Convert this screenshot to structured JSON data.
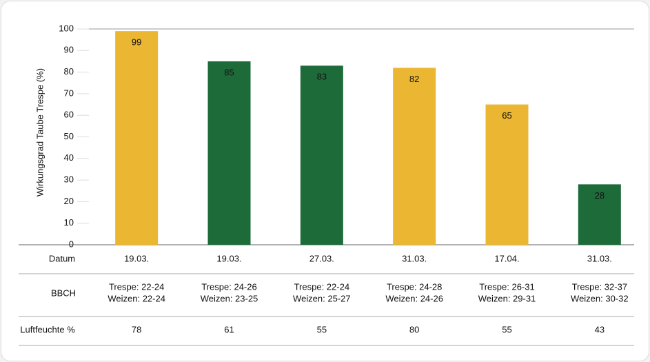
{
  "chart_data": {
    "type": "bar",
    "ylabel": "Wirkungsgrad Taube Trespe (%)",
    "categories": [
      "19.03.",
      "19.03.",
      "27.03.",
      "31.03.",
      "17.04.",
      "31.03."
    ],
    "values": [
      99,
      85,
      83,
      82,
      65,
      28
    ],
    "colors": [
      "#ebb733",
      "#1e6b3a",
      "#1e6b3a",
      "#ebb733",
      "#ebb733",
      "#1e6b3a"
    ],
    "ylim": [
      0,
      100
    ],
    "yticks": [
      0,
      10,
      20,
      30,
      40,
      50,
      60,
      70,
      80,
      90,
      100
    ]
  },
  "table": {
    "date_label": "Datum",
    "bbch_label": "BBCH",
    "bbch": [
      [
        "Trespe: 22-24",
        "Weizen: 22-24"
      ],
      [
        "Trespe: 24-26",
        "Weizen: 23-25"
      ],
      [
        "Trespe: 22-24",
        "Weizen: 25-27"
      ],
      [
        "Trespe: 24-28",
        "Weizen: 24-26"
      ],
      [
        "Trespe: 26-31",
        "Weizen: 29-31"
      ],
      [
        "Trespe: 32-37",
        "Weizen: 30-32"
      ]
    ],
    "humidity_label": "Luftfeuchte %",
    "humidity": [
      78,
      61,
      55,
      80,
      55,
      43
    ]
  }
}
